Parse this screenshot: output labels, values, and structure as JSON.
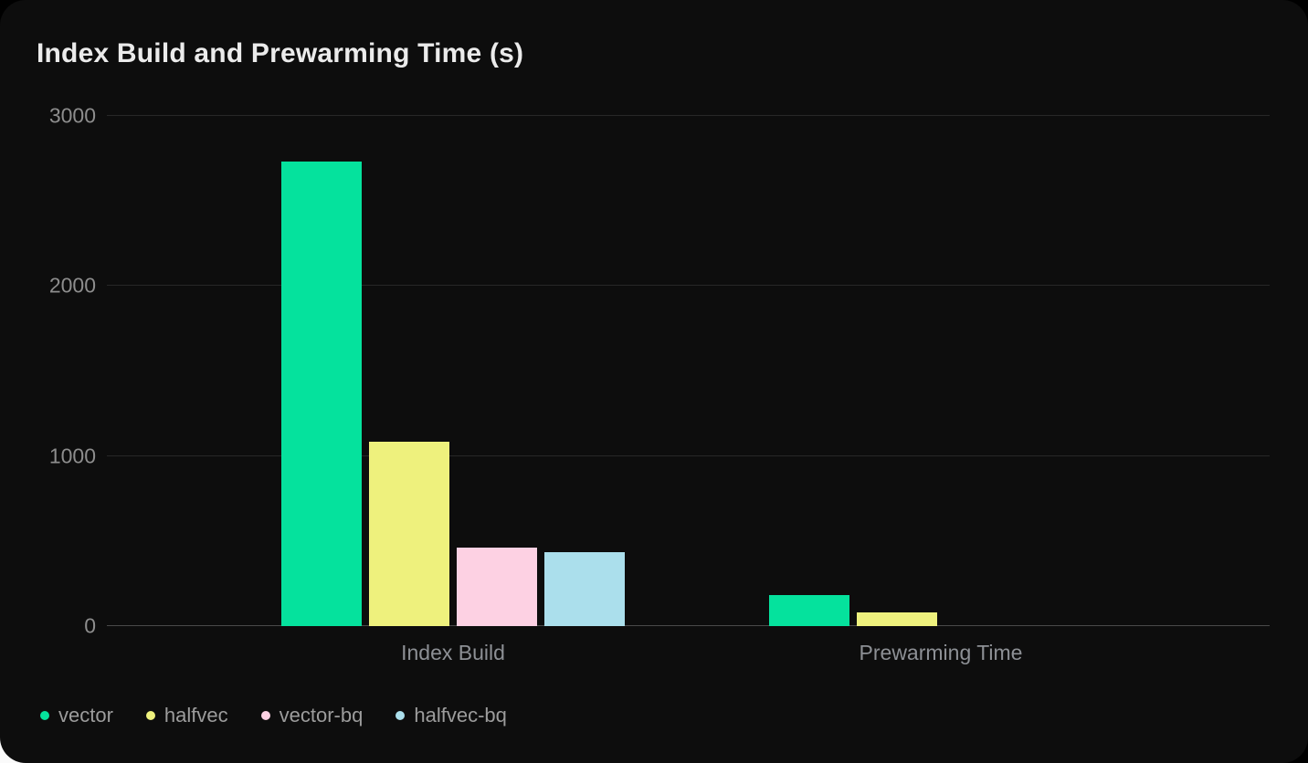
{
  "chart_data": {
    "type": "bar",
    "title": "Index Build and Prewarming Time (s)",
    "categories": [
      "Index Build",
      "Prewarming Time"
    ],
    "series": [
      {
        "name": "vector",
        "color": "#05e29d",
        "values": [
          2730,
          180
        ]
      },
      {
        "name": "halfvec",
        "color": "#eef17d",
        "values": [
          1085,
          80
        ]
      },
      {
        "name": "vector-bq",
        "color": "#fdd1e3",
        "values": [
          460,
          0
        ]
      },
      {
        "name": "halfvec-bq",
        "color": "#abdfec",
        "values": [
          435,
          0
        ]
      }
    ],
    "xlabel": "",
    "ylabel": "",
    "y_ticks": [
      0,
      1000,
      2000,
      3000
    ],
    "ylim": [
      0,
      3000
    ],
    "grid": true,
    "legend_position": "bottom-left",
    "theme": {
      "background": "#0d0d0d",
      "outer_background": "#000000",
      "title_color": "#ebebeb",
      "tick_label_color": "#8d8d8d",
      "legend_label_color": "#9c9c9c",
      "gridline_color": "#272727",
      "zero_line_color": "#4a4a4a"
    }
  }
}
